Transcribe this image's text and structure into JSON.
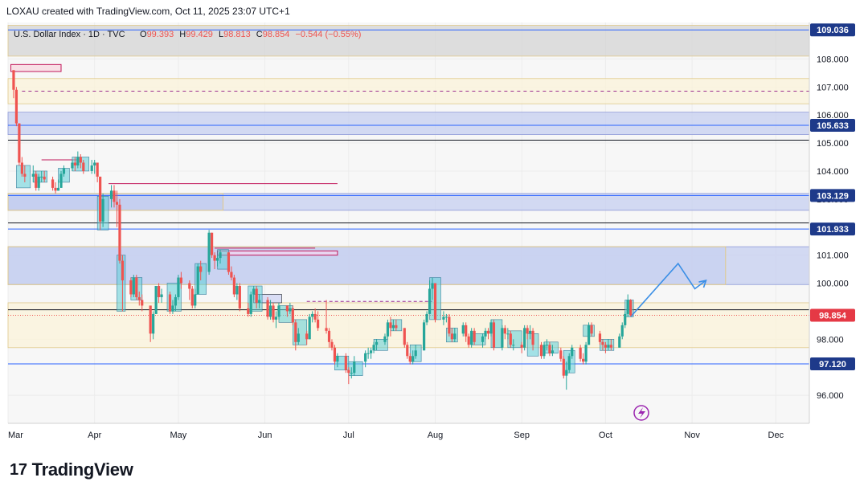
{
  "header": {
    "credit": "LOXAU created with TradingView.com, Oct 11, 2025 23:07 UTC+1"
  },
  "legend": {
    "title": "U.S. Dollar Index · 1D · TVC",
    "open_label": "O",
    "open": "99.393",
    "high_label": "H",
    "high": "99.429",
    "low_label": "L",
    "low": "98.813",
    "close_label": "C",
    "close": "98.854",
    "change": "−0.544 (−0.55%)"
  },
  "footer": {
    "brand": "TradingView",
    "logo_mark": "17"
  },
  "colors": {
    "bull": "#26a69a",
    "bear": "#ef5350",
    "blue_line": "#2962ff",
    "zone_blue": "#c5cff0",
    "zone_yellow": "#fbf3d9",
    "zone_gray": "#d4d4d4",
    "label_blue": "#1e3a8a",
    "label_red": "#e53945",
    "arrow": "#3b8fe6"
  },
  "chart_data": {
    "type": "candlestick",
    "symbol": "U.S. Dollar Index",
    "timeframe": "1D",
    "ylim": [
      95.0,
      109.3
    ],
    "y_ticks": [
      96.0,
      98.0,
      100.0,
      101.0,
      103.0,
      104.0,
      105.0,
      106.0,
      107.0,
      108.0
    ],
    "y_tick_labels": [
      "96.000",
      "98.000",
      "100.000",
      "101.000",
      "103.000",
      "104.000",
      "105.000",
      "106.000",
      "107.000",
      "108.000"
    ],
    "x_labels": [
      "Mar",
      "Apr",
      "May",
      "Jun",
      "Jul",
      "Aug",
      "Sep",
      "Oct",
      "Nov",
      "Dec"
    ],
    "price_labels": [
      {
        "value": 109.036,
        "text": "109.036",
        "color": "#1e3a8a"
      },
      {
        "value": 105.633,
        "text": "105.633",
        "color": "#1e3a8a"
      },
      {
        "value": 103.129,
        "text": "103.129",
        "color": "#1e3a8a"
      },
      {
        "value": 101.933,
        "text": "101.933",
        "color": "#1e3a8a"
      },
      {
        "value": 97.12,
        "text": "97.120",
        "color": "#1e3a8a"
      },
      {
        "value": 98.854,
        "text": "98.854",
        "color": "#e53945"
      }
    ],
    "zones": [
      {
        "from": 108.1,
        "to": 109.2,
        "color": "gray"
      },
      {
        "from": 106.4,
        "to": 107.3,
        "color": "yellow"
      },
      {
        "from": 105.3,
        "to": 106.1,
        "color": "blue"
      },
      {
        "from": 102.6,
        "to": 103.2,
        "color": "blue"
      },
      {
        "from": 99.95,
        "to": 101.3,
        "color": "blue"
      },
      {
        "from": 97.7,
        "to": 99.3,
        "color": "yellow"
      }
    ],
    "h_lines": [
      109.036,
      105.633,
      105.1,
      103.129,
      102.15,
      101.933,
      99.05,
      97.12
    ],
    "candles": [
      [
        "2025-03-03",
        107.6,
        106.9,
        107.6,
        106.6
      ],
      [
        "2025-03-04",
        106.9,
        105.7,
        107.0,
        105.6
      ],
      [
        "2025-03-05",
        105.7,
        104.3,
        105.7,
        104.2
      ],
      [
        "2025-03-06",
        104.3,
        103.9,
        104.5,
        103.8
      ],
      [
        "2025-03-07",
        103.9,
        103.8,
        104.2,
        103.6
      ],
      [
        "2025-03-10",
        103.8,
        103.9,
        104.2,
        103.6
      ],
      [
        "2025-03-11",
        103.9,
        103.4,
        104.0,
        103.3
      ],
      [
        "2025-03-12",
        103.4,
        103.8,
        103.9,
        103.3
      ],
      [
        "2025-03-13",
        103.8,
        103.8,
        104.0,
        103.6
      ],
      [
        "2025-03-14",
        103.8,
        103.7,
        104.0,
        103.6
      ],
      [
        "2025-03-17",
        103.7,
        103.4,
        103.8,
        103.3
      ],
      [
        "2025-03-18",
        103.4,
        103.3,
        103.6,
        103.2
      ],
      [
        "2025-03-19",
        103.3,
        103.4,
        103.7,
        103.3
      ],
      [
        "2025-03-20",
        103.4,
        103.9,
        104.0,
        103.4
      ],
      [
        "2025-03-21",
        103.9,
        104.1,
        104.2,
        103.8
      ],
      [
        "2025-03-24",
        104.1,
        104.3,
        104.4,
        104.0
      ],
      [
        "2025-03-25",
        104.3,
        104.2,
        104.5,
        104.0
      ],
      [
        "2025-03-26",
        104.2,
        104.5,
        104.7,
        104.1
      ],
      [
        "2025-03-27",
        104.5,
        104.3,
        104.6,
        104.1
      ],
      [
        "2025-03-28",
        104.3,
        104.0,
        104.4,
        103.9
      ],
      [
        "2025-03-31",
        104.0,
        104.2,
        104.4,
        103.9
      ],
      [
        "2025-04-01",
        104.2,
        104.3,
        104.4,
        103.9
      ],
      [
        "2025-04-02",
        104.3,
        103.8,
        104.3,
        103.6
      ],
      [
        "2025-04-03",
        103.8,
        102.2,
        103.8,
        101.9
      ],
      [
        "2025-04-04",
        102.2,
        103.0,
        103.2,
        102.0
      ],
      [
        "2025-04-07",
        103.0,
        103.3,
        103.5,
        102.7
      ],
      [
        "2025-04-08",
        103.3,
        102.9,
        103.5,
        102.7
      ],
      [
        "2025-04-09",
        102.9,
        102.8,
        103.3,
        102.0
      ],
      [
        "2025-04-10",
        102.8,
        100.8,
        103.0,
        100.7
      ],
      [
        "2025-04-11",
        100.8,
        100.1,
        101.0,
        99.0
      ],
      [
        "2025-04-14",
        100.1,
        99.6,
        100.2,
        99.5
      ],
      [
        "2025-04-15",
        99.6,
        100.2,
        100.3,
        99.5
      ],
      [
        "2025-04-16",
        100.2,
        99.5,
        100.3,
        99.4
      ],
      [
        "2025-04-17",
        99.5,
        99.4,
        99.7,
        99.2
      ],
      [
        "2025-04-18",
        99.4,
        99.2,
        99.6,
        99.0
      ],
      [
        "2025-04-21",
        99.2,
        98.2,
        99.2,
        97.9
      ],
      [
        "2025-04-22",
        98.2,
        98.9,
        99.0,
        98.0
      ],
      [
        "2025-04-23",
        98.9,
        99.9,
        99.9,
        98.9
      ],
      [
        "2025-04-24",
        99.9,
        99.5,
        100.0,
        99.3
      ],
      [
        "2025-04-25",
        99.5,
        99.6,
        99.8,
        99.3
      ],
      [
        "2025-04-28",
        99.6,
        99.0,
        99.7,
        98.9
      ],
      [
        "2025-04-29",
        99.0,
        99.2,
        99.4,
        98.9
      ],
      [
        "2025-04-30",
        99.2,
        99.5,
        99.6,
        99.0
      ],
      [
        "2025-05-01",
        99.5,
        100.2,
        100.3,
        99.4
      ],
      [
        "2025-05-02",
        100.2,
        100.0,
        100.4,
        99.8
      ],
      [
        "2025-05-05",
        100.0,
        99.8,
        100.1,
        99.4
      ],
      [
        "2025-05-06",
        99.8,
        99.2,
        99.9,
        99.1
      ],
      [
        "2025-05-07",
        99.2,
        99.6,
        99.8,
        99.1
      ],
      [
        "2025-05-08",
        99.6,
        100.6,
        100.7,
        99.6
      ],
      [
        "2025-05-09",
        100.6,
        100.4,
        100.8,
        100.1
      ],
      [
        "2025-05-12",
        100.4,
        101.8,
        101.9,
        100.3
      ],
      [
        "2025-05-13",
        101.8,
        101.0,
        101.8,
        100.9
      ],
      [
        "2025-05-14",
        101.0,
        100.8,
        101.1,
        100.5
      ],
      [
        "2025-05-15",
        100.8,
        100.9,
        101.0,
        100.6
      ],
      [
        "2025-05-16",
        100.9,
        101.1,
        101.2,
        100.7
      ],
      [
        "2025-05-19",
        101.1,
        100.4,
        101.1,
        100.3
      ],
      [
        "2025-05-20",
        100.4,
        100.2,
        100.6,
        100.1
      ],
      [
        "2025-05-21",
        100.2,
        99.6,
        100.3,
        99.5
      ],
      [
        "2025-05-22",
        99.6,
        99.9,
        100.0,
        99.4
      ],
      [
        "2025-05-23",
        99.9,
        99.1,
        100.0,
        99.0
      ],
      [
        "2025-05-26",
        99.1,
        98.9,
        99.3,
        98.8
      ],
      [
        "2025-05-27",
        98.9,
        99.6,
        99.7,
        98.8
      ],
      [
        "2025-05-28",
        99.6,
        99.8,
        99.9,
        99.4
      ],
      [
        "2025-05-29",
        99.8,
        99.3,
        99.9,
        99.1
      ],
      [
        "2025-05-30",
        99.3,
        99.4,
        99.6,
        99.1
      ],
      [
        "2025-06-02",
        99.4,
        98.8,
        99.5,
        98.7
      ],
      [
        "2025-06-03",
        98.8,
        99.2,
        99.4,
        98.7
      ],
      [
        "2025-06-04",
        99.2,
        98.7,
        99.3,
        98.6
      ],
      [
        "2025-06-05",
        98.7,
        98.8,
        99.0,
        98.4
      ],
      [
        "2025-06-06",
        98.8,
        99.2,
        99.3,
        98.7
      ],
      [
        "2025-06-09",
        99.2,
        99.0,
        99.2,
        98.8
      ],
      [
        "2025-06-10",
        99.0,
        99.1,
        99.3,
        98.9
      ],
      [
        "2025-06-11",
        99.1,
        98.6,
        99.2,
        98.5
      ],
      [
        "2025-06-12",
        98.6,
        97.9,
        98.7,
        97.6
      ],
      [
        "2025-06-13",
        97.9,
        98.2,
        98.4,
        97.8
      ],
      [
        "2025-06-16",
        98.2,
        98.0,
        98.3,
        97.8
      ],
      [
        "2025-06-17",
        98.0,
        98.8,
        98.9,
        98.0
      ],
      [
        "2025-06-18",
        98.8,
        98.9,
        99.0,
        98.6
      ],
      [
        "2025-06-19",
        98.9,
        98.7,
        99.1,
        98.6
      ],
      [
        "2025-06-20",
        98.7,
        98.4,
        99.0,
        98.3
      ],
      [
        "2025-06-23",
        98.4,
        98.3,
        99.4,
        98.2
      ],
      [
        "2025-06-24",
        98.3,
        97.9,
        98.4,
        97.7
      ],
      [
        "2025-06-25",
        97.9,
        97.7,
        98.0,
        97.6
      ],
      [
        "2025-06-26",
        97.7,
        97.2,
        97.8,
        97.1
      ],
      [
        "2025-06-27",
        97.2,
        97.4,
        97.5,
        97.0
      ],
      [
        "2025-06-30",
        97.4,
        96.9,
        97.5,
        96.8
      ],
      [
        "2025-07-01",
        96.9,
        96.8,
        97.0,
        96.4
      ],
      [
        "2025-07-02",
        96.8,
        96.8,
        97.0,
        96.6
      ],
      [
        "2025-07-03",
        96.8,
        97.2,
        97.4,
        96.7
      ],
      [
        "2025-07-07",
        97.2,
        97.5,
        97.6,
        97.0
      ],
      [
        "2025-07-08",
        97.5,
        97.5,
        97.7,
        97.3
      ],
      [
        "2025-07-09",
        97.5,
        97.6,
        97.7,
        97.3
      ],
      [
        "2025-07-10",
        97.6,
        97.8,
        97.9,
        97.5
      ],
      [
        "2025-07-11",
        97.8,
        97.9,
        98.0,
        97.6
      ],
      [
        "2025-07-14",
        97.9,
        98.1,
        98.2,
        97.8
      ],
      [
        "2025-07-15",
        98.1,
        98.6,
        98.7,
        98.0
      ],
      [
        "2025-07-16",
        98.6,
        98.4,
        98.8,
        98.1
      ],
      [
        "2025-07-17",
        98.4,
        98.5,
        98.7,
        98.3
      ],
      [
        "2025-07-18",
        98.5,
        98.4,
        98.7,
        98.3
      ],
      [
        "2025-07-21",
        98.4,
        97.8,
        98.4,
        97.7
      ],
      [
        "2025-07-22",
        97.8,
        97.4,
        97.9,
        97.3
      ],
      [
        "2025-07-23",
        97.4,
        97.2,
        97.5,
        97.1
      ],
      [
        "2025-07-24",
        97.2,
        97.4,
        97.6,
        97.1
      ],
      [
        "2025-07-25",
        97.4,
        97.6,
        97.8,
        97.3
      ],
      [
        "2025-07-28",
        97.6,
        98.6,
        98.7,
        97.6
      ],
      [
        "2025-07-29",
        98.6,
        98.9,
        99.0,
        98.5
      ],
      [
        "2025-07-30",
        98.9,
        99.8,
        100.1,
        98.9
      ],
      [
        "2025-07-31",
        99.8,
        100.0,
        100.2,
        99.4
      ],
      [
        "2025-08-01",
        100.0,
        98.7,
        100.0,
        98.6
      ],
      [
        "2025-08-04",
        98.7,
        98.8,
        99.0,
        98.5
      ],
      [
        "2025-08-05",
        98.8,
        98.8,
        98.9,
        98.6
      ],
      [
        "2025-08-06",
        98.8,
        98.2,
        98.9,
        98.1
      ],
      [
        "2025-08-07",
        98.2,
        98.0,
        98.4,
        97.9
      ],
      [
        "2025-08-08",
        98.0,
        98.2,
        98.4,
        97.9
      ],
      [
        "2025-08-11",
        98.2,
        98.5,
        98.6,
        98.1
      ],
      [
        "2025-08-12",
        98.5,
        98.1,
        98.6,
        97.9
      ],
      [
        "2025-08-13",
        98.1,
        97.8,
        98.2,
        97.7
      ],
      [
        "2025-08-14",
        97.8,
        98.3,
        98.4,
        97.7
      ],
      [
        "2025-08-15",
        98.3,
        97.9,
        98.4,
        97.8
      ],
      [
        "2025-08-18",
        97.9,
        98.1,
        98.2,
        97.7
      ],
      [
        "2025-08-19",
        98.1,
        98.3,
        98.4,
        98.0
      ],
      [
        "2025-08-20",
        98.3,
        98.2,
        98.4,
        98.0
      ],
      [
        "2025-08-21",
        98.2,
        98.6,
        98.7,
        98.1
      ],
      [
        "2025-08-22",
        98.6,
        97.7,
        98.7,
        97.6
      ],
      [
        "2025-08-25",
        97.7,
        98.4,
        98.5,
        97.6
      ],
      [
        "2025-08-26",
        98.4,
        98.2,
        98.5,
        98.0
      ],
      [
        "2025-08-27",
        98.2,
        98.2,
        98.4,
        98.0
      ],
      [
        "2025-08-28",
        98.2,
        97.8,
        98.3,
        97.7
      ],
      [
        "2025-08-29",
        97.8,
        97.8,
        98.0,
        97.6
      ],
      [
        "2025-09-01",
        97.8,
        97.7,
        97.9,
        97.5
      ],
      [
        "2025-09-02",
        97.7,
        98.4,
        98.5,
        97.6
      ],
      [
        "2025-09-03",
        98.4,
        98.2,
        98.5,
        98.0
      ],
      [
        "2025-09-04",
        98.2,
        98.3,
        98.5,
        98.0
      ],
      [
        "2025-09-05",
        98.3,
        97.8,
        98.4,
        97.6
      ],
      [
        "2025-09-08",
        97.8,
        97.4,
        97.9,
        97.3
      ],
      [
        "2025-09-09",
        97.4,
        97.8,
        97.9,
        97.3
      ],
      [
        "2025-09-10",
        97.8,
        97.8,
        98.0,
        97.6
      ],
      [
        "2025-09-11",
        97.8,
        97.5,
        97.9,
        97.4
      ],
      [
        "2025-09-12",
        97.5,
        97.6,
        97.8,
        97.4
      ],
      [
        "2025-09-15",
        97.6,
        97.3,
        97.7,
        97.2
      ],
      [
        "2025-09-16",
        97.3,
        96.7,
        97.4,
        96.6
      ],
      [
        "2025-09-17",
        96.7,
        96.9,
        97.2,
        96.2
      ],
      [
        "2025-09-18",
        96.9,
        97.4,
        97.5,
        96.8
      ],
      [
        "2025-09-19",
        97.4,
        97.7,
        97.8,
        97.3
      ],
      [
        "2025-09-22",
        97.7,
        97.3,
        97.8,
        97.2
      ],
      [
        "2025-09-23",
        97.3,
        97.2,
        97.5,
        97.1
      ],
      [
        "2025-09-24",
        97.2,
        97.8,
        97.9,
        97.1
      ],
      [
        "2025-09-25",
        97.8,
        98.5,
        98.6,
        97.8
      ],
      [
        "2025-09-26",
        98.5,
        98.2,
        98.6,
        98.1
      ],
      [
        "2025-09-29",
        98.2,
        97.9,
        98.3,
        97.8
      ],
      [
        "2025-09-30",
        97.9,
        97.8,
        98.0,
        97.6
      ],
      [
        "2025-10-01",
        97.8,
        97.7,
        97.9,
        97.5
      ],
      [
        "2025-10-02",
        97.7,
        97.8,
        98.0,
        97.6
      ],
      [
        "2025-10-03",
        97.8,
        97.7,
        98.0,
        97.6
      ],
      [
        "2025-10-06",
        97.7,
        98.1,
        98.2,
        97.7
      ],
      [
        "2025-10-07",
        98.1,
        98.5,
        98.6,
        98.0
      ],
      [
        "2025-10-08",
        98.5,
        98.9,
        99.0,
        98.4
      ],
      [
        "2025-10-09",
        98.9,
        99.4,
        99.6,
        98.8
      ],
      [
        "2025-10-10",
        99.393,
        98.854,
        99.429,
        98.813
      ]
    ],
    "projection_path": [
      [
        "2025-10-10",
        98.8
      ],
      [
        "2025-10-27",
        100.7
      ],
      [
        "2025-11-02",
        99.8
      ],
      [
        "2025-11-06",
        100.1
      ]
    ]
  }
}
